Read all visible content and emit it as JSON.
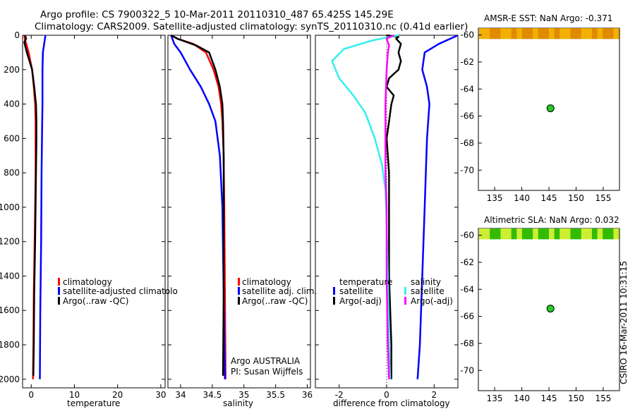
{
  "header": {
    "line1": "Argo profile: CS 7900322_5 10-Mar-2011 20110310_487 65.425S 145.29E",
    "line2": "Climatology: CARS2009. Satellite-adjusted climatology: synTS_20110310.nc (0.41d earlier)"
  },
  "side_label": "CSIRO 16-Mar-2011 10:31:15",
  "colors": {
    "climatology": "#ff0000",
    "satellite": "#0000ff",
    "argo": "#000000",
    "sal_satellite": "#33eeee",
    "sal_argo": "#ff00ff",
    "float_marker": "#22cc22"
  },
  "chart_data": [
    {
      "type": "line",
      "id": "temperature",
      "xlabel": "temperature",
      "ylabel": "",
      "xlim": [
        -2,
        31
      ],
      "ylim": [
        2050,
        0
      ],
      "xticks": [
        0,
        10,
        20,
        30
      ],
      "xtick_labels": [
        "0",
        "10",
        "20",
        "30"
      ],
      "yticks": [
        0,
        200,
        400,
        600,
        800,
        1000,
        1200,
        1400,
        1600,
        1800,
        2000
      ],
      "ytick_labels": [
        "0",
        "200",
        "400",
        "600",
        "800",
        "1000",
        "1200",
        "1400",
        "1600",
        "1800",
        "2000"
      ],
      "legend": [
        "climatology",
        "satellite-adjusted climatolo",
        "Argo(..raw -QC)"
      ],
      "series": [
        {
          "name": "climatology",
          "color": "#ff0000",
          "x": [
            -1.6,
            -1.5,
            -0.6,
            0.2,
            0.6,
            0.9,
            1.0,
            1.0,
            1.0,
            0.9,
            0.8,
            0.6,
            0.5,
            0.4
          ],
          "y": [
            0,
            20,
            100,
            200,
            300,
            400,
            500,
            600,
            800,
            1000,
            1200,
            1500,
            1800,
            2000
          ]
        },
        {
          "name": "satellite-adjusted climatolo",
          "color": "#0000ff",
          "x": [
            3.3,
            3.0,
            2.7,
            2.6,
            2.6,
            2.6,
            2.5,
            2.4,
            2.3,
            2.1,
            2.0
          ],
          "y": [
            0,
            50,
            100,
            200,
            300,
            400,
            600,
            800,
            1200,
            1600,
            2000
          ]
        },
        {
          "name": "Argo(..raw -QC)",
          "color": "#000000",
          "x": [
            -1.4,
            -1.2,
            -1.6,
            -1.0,
            0.2,
            0.7,
            1.1,
            1.2,
            1.2,
            1.1,
            1.0,
            0.9,
            0.7,
            0.6,
            0.5
          ],
          "y": [
            0,
            20,
            40,
            100,
            200,
            300,
            400,
            500,
            600,
            800,
            1000,
            1200,
            1500,
            1800,
            1980
          ]
        }
      ]
    },
    {
      "type": "line",
      "id": "salinity",
      "xlabel": "salinity",
      "xlim": [
        33.8,
        36.05
      ],
      "ylim": [
        2050,
        0
      ],
      "xticks": [
        34,
        34.5,
        35,
        35.5,
        36
      ],
      "xtick_labels": [
        "34",
        "34.5",
        "35",
        "35.5",
        "36"
      ],
      "legend": [
        "climatology",
        "satellite adj. clim.",
        "Argo(..raw -QC)"
      ],
      "annotation": [
        "Argo AUSTRALIA",
        "PI: Susan Wijffels"
      ],
      "series": [
        {
          "name": "climatology",
          "color": "#ff0000",
          "x": [
            33.85,
            33.95,
            34.2,
            34.4,
            34.52,
            34.6,
            34.64,
            34.66,
            34.68,
            34.69,
            34.7,
            34.71
          ],
          "y": [
            0,
            20,
            50,
            100,
            200,
            300,
            400,
            500,
            700,
            1000,
            1500,
            2000
          ]
        },
        {
          "name": "satellite adj. clim.",
          "color": "#0000ff",
          "x": [
            33.85,
            33.9,
            34.0,
            34.15,
            34.32,
            34.45,
            34.55,
            34.62,
            34.66,
            34.68,
            34.7
          ],
          "y": [
            0,
            50,
            100,
            200,
            300,
            400,
            500,
            700,
            1000,
            1500,
            2000
          ]
        },
        {
          "name": "Argo(..raw -QC)",
          "color": "#000000",
          "x": [
            33.85,
            33.95,
            34.25,
            34.45,
            34.55,
            34.62,
            34.66,
            34.67,
            34.68,
            34.68,
            34.68,
            34.67
          ],
          "y": [
            0,
            20,
            60,
            100,
            200,
            300,
            400,
            500,
            700,
            1000,
            1500,
            1980
          ]
        }
      ]
    },
    {
      "type": "line",
      "id": "difference",
      "xlabel": "difference from climatology",
      "xlim": [
        -3,
        3
      ],
      "ylim": [
        2050,
        0
      ],
      "xticks": [
        -2,
        0,
        2
      ],
      "xtick_labels": [
        "-2",
        "0",
        "2"
      ],
      "legend_groups": [
        {
          "title": "temperature",
          "entries": [
            "satellite",
            "Argo(-adj)"
          ]
        },
        {
          "title": "salinity",
          "entries": [
            "satellite",
            "Argo(-adj)"
          ]
        }
      ],
      "series": [
        {
          "name": "satellite",
          "group": "temperature",
          "color": "#0000ff",
          "x": [
            3.0,
            2.2,
            1.6,
            1.5,
            1.7,
            1.8,
            1.7,
            1.6,
            1.5,
            1.4,
            1.3
          ],
          "y": [
            0,
            50,
            100,
            200,
            300,
            400,
            600,
            1000,
            1400,
            1800,
            2000
          ]
        },
        {
          "name": "Argo(-adj)",
          "group": "temperature",
          "color": "#000000",
          "x": [
            0.0,
            0.5,
            0.4,
            0.6,
            0.5,
            0.6,
            0.5,
            0.1,
            0.0,
            0.3,
            0.2,
            0.1,
            0.0,
            0.1,
            0.1,
            0.1,
            0.2,
            0.2
          ],
          "y": [
            0,
            10,
            20,
            50,
            100,
            150,
            200,
            250,
            300,
            350,
            400,
            500,
            600,
            800,
            1000,
            1400,
            1800,
            2000
          ]
        },
        {
          "name": "satellite",
          "group": "salinity",
          "color": "#33eeee",
          "x": [
            0.5,
            -0.6,
            -1.8,
            -2.3,
            -2.0,
            -1.4,
            -0.9,
            -0.5,
            -0.2,
            -0.05,
            0.0,
            0.05,
            0.1,
            0.15
          ],
          "y": [
            0,
            30,
            80,
            150,
            250,
            350,
            450,
            600,
            750,
            900,
            1100,
            1400,
            1800,
            2000
          ]
        },
        {
          "name": "Argo(-adj)",
          "group": "salinity",
          "color": "#ff00ff",
          "x": [
            0.3,
            0.0,
            0.1,
            0.05,
            0.0,
            -0.05,
            -0.05,
            -0.05,
            0.0,
            0.0,
            0.05,
            0.1
          ],
          "y": [
            0,
            20,
            60,
            100,
            200,
            400,
            600,
            800,
            1000,
            1400,
            1800,
            2000
          ]
        }
      ]
    },
    {
      "type": "heatmap",
      "id": "sst-map",
      "title": "AMSR-E SST: NaN Argo: -0.371",
      "xlim": [
        132,
        158
      ],
      "ylim": [
        -71.5,
        -59.5
      ],
      "xticks": [
        135,
        140,
        145,
        150,
        155
      ],
      "yticks": [
        -60,
        -62,
        -64,
        -66,
        -68,
        -70
      ],
      "band_lat": [
        -59.5,
        -60.3
      ],
      "band_colors": [
        "#e08a00",
        "#f2b000"
      ],
      "marker": {
        "lon": 145.29,
        "lat": -65.425
      }
    },
    {
      "type": "heatmap",
      "id": "sla-map",
      "title": "Altimetric SLA: NaN Argo: 0.032",
      "xlim": [
        132,
        158
      ],
      "ylim": [
        -71.5,
        -59.5
      ],
      "xticks": [
        135,
        140,
        145,
        150,
        155
      ],
      "yticks": [
        -60,
        -62,
        -64,
        -66,
        -68,
        -70
      ],
      "band_lat": [
        -59.5,
        -60.3
      ],
      "band_colors": [
        "#33bb00",
        "#ccee33"
      ],
      "marker": {
        "lon": 145.29,
        "lat": -65.425
      }
    }
  ]
}
